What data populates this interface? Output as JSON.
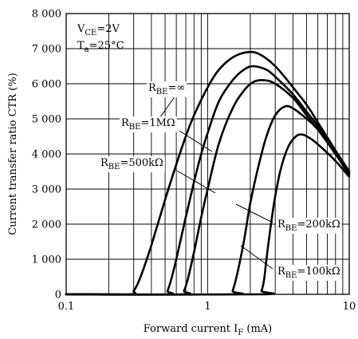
{
  "chart_data": {
    "type": "line",
    "xlabel": "Forward current I_F (mA)",
    "ylabel": "Current transfer ratio CTR (%)",
    "x_scale": "log",
    "xlim": [
      0.1,
      10
    ],
    "ylim": [
      0,
      8000
    ],
    "x_ticks": [
      {
        "value": 0.1,
        "label": "0.1"
      },
      {
        "value": 1,
        "label": "1"
      },
      {
        "value": 10,
        "label": "10"
      }
    ],
    "y_ticks": [
      {
        "value": 0,
        "label": "0"
      },
      {
        "value": 1000,
        "label": "1 000"
      },
      {
        "value": 2000,
        "label": "2 000"
      },
      {
        "value": 3000,
        "label": "3 000"
      },
      {
        "value": 4000,
        "label": "4 000"
      },
      {
        "value": 5000,
        "label": "5 000"
      },
      {
        "value": 6000,
        "label": "6 000"
      },
      {
        "value": 7000,
        "label": "7 000"
      },
      {
        "value": 8000,
        "label": "8 000"
      }
    ],
    "grid": true,
    "conditions": [
      {
        "main": "V",
        "sub": "CE",
        "rest": "=2V"
      },
      {
        "main": "T",
        "sub": "a",
        "rest": "=25°C"
      }
    ],
    "series": [
      {
        "name": "R_BE=∞",
        "label": {
          "main": "R",
          "sub": "BE",
          "rest": "=∞"
        },
        "points": [
          [
            0.1,
            0
          ],
          [
            0.28,
            0
          ],
          [
            0.3,
            100
          ],
          [
            0.32,
            300
          ],
          [
            0.35,
            700
          ],
          [
            0.4,
            1400
          ],
          [
            0.5,
            2700
          ],
          [
            0.6,
            3700
          ],
          [
            0.7,
            4500
          ],
          [
            0.8,
            5100
          ],
          [
            1,
            5900
          ],
          [
            1.2,
            6400
          ],
          [
            1.5,
            6750
          ],
          [
            1.9,
            6900
          ],
          [
            2.3,
            6850
          ],
          [
            3,
            6500
          ],
          [
            4,
            5900
          ],
          [
            5,
            5400
          ],
          [
            6,
            4900
          ],
          [
            8,
            4100
          ],
          [
            10,
            3500
          ]
        ]
      },
      {
        "name": "R_BE=1MΩ",
        "label": {
          "main": "R",
          "sub": "BE",
          "rest": "=1MΩ"
        },
        "points": [
          [
            0.1,
            0
          ],
          [
            0.5,
            0
          ],
          [
            0.52,
            100
          ],
          [
            0.55,
            400
          ],
          [
            0.6,
            1000
          ],
          [
            0.7,
            2200
          ],
          [
            0.8,
            3200
          ],
          [
            0.9,
            4000
          ],
          [
            1,
            4600
          ],
          [
            1.2,
            5500
          ],
          [
            1.5,
            6100
          ],
          [
            1.8,
            6400
          ],
          [
            2.1,
            6500
          ],
          [
            2.6,
            6400
          ],
          [
            3,
            6200
          ],
          [
            4,
            5700
          ],
          [
            5,
            5200
          ],
          [
            6,
            4800
          ],
          [
            8,
            4050
          ],
          [
            10,
            3450
          ]
        ]
      },
      {
        "name": "R_BE=500kΩ",
        "label": {
          "main": "R",
          "sub": "BE",
          "rest": "=500kΩ"
        },
        "points": [
          [
            0.1,
            0
          ],
          [
            0.65,
            0
          ],
          [
            0.68,
            100
          ],
          [
            0.72,
            400
          ],
          [
            0.8,
            1200
          ],
          [
            0.9,
            2200
          ],
          [
            1,
            3000
          ],
          [
            1.2,
            4300
          ],
          [
            1.5,
            5300
          ],
          [
            1.8,
            5800
          ],
          [
            2.1,
            6050
          ],
          [
            2.5,
            6100
          ],
          [
            3,
            6000
          ],
          [
            4,
            5600
          ],
          [
            5,
            5100
          ],
          [
            6,
            4700
          ],
          [
            8,
            4000
          ],
          [
            10,
            3450
          ]
        ]
      },
      {
        "name": "R_BE=200kΩ",
        "label": {
          "main": "R",
          "sub": "BE",
          "rest": "=200kΩ"
        },
        "points": [
          [
            0.1,
            0
          ],
          [
            1.45,
            0
          ],
          [
            1.5,
            100
          ],
          [
            1.6,
            500
          ],
          [
            1.8,
            1500
          ],
          [
            2,
            2600
          ],
          [
            2.3,
            3700
          ],
          [
            2.6,
            4500
          ],
          [
            3,
            5100
          ],
          [
            3.5,
            5350
          ],
          [
            4,
            5300
          ],
          [
            5,
            5000
          ],
          [
            6,
            4700
          ],
          [
            8,
            4000
          ],
          [
            10,
            3400
          ]
        ]
      },
      {
        "name": "R_BE=100kΩ",
        "label": {
          "main": "R",
          "sub": "BE",
          "rest": "=100kΩ"
        },
        "points": [
          [
            0.1,
            0
          ],
          [
            2.3,
            0
          ],
          [
            2.4,
            100
          ],
          [
            2.5,
            400
          ],
          [
            2.6,
            1000
          ],
          [
            2.8,
            2000
          ],
          [
            3,
            2800
          ],
          [
            3.3,
            3600
          ],
          [
            3.7,
            4200
          ],
          [
            4.2,
            4500
          ],
          [
            4.7,
            4550
          ],
          [
            5.5,
            4400
          ],
          [
            6.5,
            4150
          ],
          [
            8,
            3800
          ],
          [
            10,
            3350
          ]
        ]
      }
    ]
  }
}
